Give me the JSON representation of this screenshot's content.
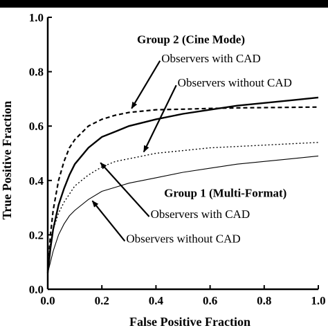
{
  "chart_data": {
    "type": "line",
    "xlabel": "False Positive Fraction",
    "ylabel": "True Positive Fraction",
    "xlim": [
      0,
      1
    ],
    "ylim": [
      0,
      1
    ],
    "x_ticks": [
      "0.0",
      "0.2",
      "0.4",
      "0.6",
      "0.8",
      "1.0"
    ],
    "y_ticks": [
      "0.0",
      "0.2",
      "0.4",
      "0.6",
      "0.8",
      "1.0"
    ],
    "grid": false,
    "series": [
      {
        "style": "dashed",
        "x": [
          0,
          0.01,
          0.02,
          0.04,
          0.06,
          0.08,
          0.1,
          0.15,
          0.2,
          0.25,
          0.3,
          0.4,
          0.5,
          0.6,
          0.7,
          0.8,
          0.9,
          1.0
        ],
        "y": [
          0.07,
          0.2,
          0.29,
          0.4,
          0.47,
          0.52,
          0.55,
          0.6,
          0.625,
          0.64,
          0.65,
          0.66,
          0.662,
          0.665,
          0.667,
          0.668,
          0.669,
          0.67
        ]
      },
      {
        "style": "solid-thick",
        "x": [
          0,
          0.01,
          0.02,
          0.04,
          0.06,
          0.08,
          0.1,
          0.15,
          0.2,
          0.25,
          0.3,
          0.4,
          0.5,
          0.6,
          0.7,
          0.8,
          0.9,
          1.0
        ],
        "y": [
          0.06,
          0.15,
          0.22,
          0.31,
          0.37,
          0.42,
          0.46,
          0.52,
          0.56,
          0.58,
          0.6,
          0.625,
          0.645,
          0.66,
          0.675,
          0.685,
          0.695,
          0.705
        ]
      },
      {
        "style": "dotted",
        "x": [
          0,
          0.01,
          0.02,
          0.04,
          0.06,
          0.08,
          0.1,
          0.15,
          0.2,
          0.25,
          0.3,
          0.4,
          0.5,
          0.6,
          0.7,
          0.8,
          0.9,
          1.0
        ],
        "y": [
          0.1,
          0.17,
          0.22,
          0.28,
          0.32,
          0.35,
          0.38,
          0.42,
          0.45,
          0.47,
          0.48,
          0.5,
          0.51,
          0.52,
          0.525,
          0.53,
          0.535,
          0.54
        ]
      },
      {
        "style": "solid-thin",
        "x": [
          0,
          0.01,
          0.02,
          0.04,
          0.06,
          0.08,
          0.1,
          0.15,
          0.2,
          0.25,
          0.3,
          0.4,
          0.5,
          0.6,
          0.7,
          0.8,
          0.9,
          1.0
        ],
        "y": [
          0.06,
          0.1,
          0.14,
          0.2,
          0.24,
          0.27,
          0.29,
          0.33,
          0.36,
          0.375,
          0.39,
          0.41,
          0.43,
          0.445,
          0.46,
          0.47,
          0.48,
          0.49
        ]
      }
    ],
    "annotations": [
      {
        "text": "Group 2 (Cine Mode)",
        "bold": true,
        "x": 0.33,
        "y": 0.905
      },
      {
        "text": "Observers with CAD",
        "bold": false,
        "x": 0.42,
        "y": 0.835,
        "arrow_to": [
          0.31,
          0.665
        ]
      },
      {
        "text": "Observers without CAD",
        "bold": false,
        "x": 0.48,
        "y": 0.745,
        "arrow_to": [
          0.355,
          0.505
        ]
      },
      {
        "text": "Group 1 (Multi-Format)",
        "bold": true,
        "x": 0.43,
        "y": 0.34
      },
      {
        "text": "Observers with CAD",
        "bold": false,
        "x": 0.38,
        "y": 0.262,
        "arrow_to": [
          0.195,
          0.465
        ]
      },
      {
        "text": "Observers without CAD",
        "bold": false,
        "x": 0.29,
        "y": 0.172,
        "arrow_to": [
          0.165,
          0.325
        ]
      }
    ]
  }
}
